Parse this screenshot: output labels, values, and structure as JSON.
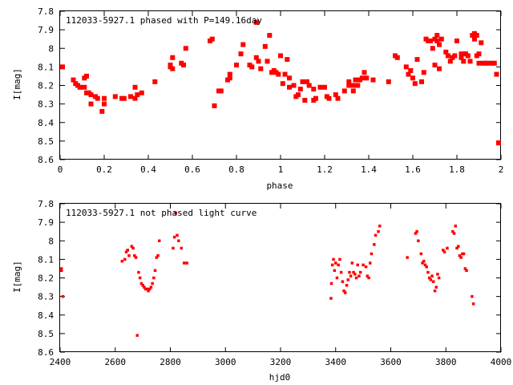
{
  "chart_data": [
    {
      "type": "scatter",
      "title": "112033-5927.1 phased with P=149.16day",
      "xlabel": "phase",
      "ylabel": "I[mag]",
      "xlim": [
        0,
        2
      ],
      "ylim": [
        7.8,
        8.6
      ],
      "y_inverted": true,
      "xticks": [
        "0",
        "0.2",
        "0.4",
        "0.6",
        "0.8",
        "1",
        "1.2",
        "1.4",
        "1.6",
        "1.8",
        "2"
      ],
      "xtick_values": [
        0,
        0.2,
        0.4,
        0.6,
        0.8,
        1.0,
        1.2,
        1.4,
        1.6,
        1.8,
        2.0
      ],
      "yticks": [
        "7.8",
        "7.9",
        "8",
        "8.1",
        "8.2",
        "8.3",
        "8.4",
        "8.5",
        "8.6"
      ],
      "ytick_values": [
        7.8,
        7.9,
        8.0,
        8.1,
        8.2,
        8.3,
        8.4,
        8.5,
        8.6
      ],
      "grid": false,
      "marker_color": "#ff0000",
      "marker": "filled-square",
      "points": [
        [
          0.0,
          8.1
        ],
        [
          0.06,
          8.17
        ],
        [
          0.07,
          8.19
        ],
        [
          0.08,
          8.2
        ],
        [
          0.09,
          8.21
        ],
        [
          0.11,
          8.21
        ],
        [
          0.11,
          8.16
        ],
        [
          0.12,
          8.15
        ],
        [
          0.12,
          8.24
        ],
        [
          0.13,
          8.24
        ],
        [
          0.14,
          8.25
        ],
        [
          0.14,
          8.3
        ],
        [
          0.16,
          8.26
        ],
        [
          0.17,
          8.27
        ],
        [
          0.19,
          8.34
        ],
        [
          0.2,
          8.27
        ],
        [
          0.2,
          8.3
        ],
        [
          0.25,
          8.26
        ],
        [
          0.28,
          8.27
        ],
        [
          0.29,
          8.27
        ],
        [
          0.32,
          8.26
        ],
        [
          0.34,
          8.27
        ],
        [
          0.34,
          8.21
        ],
        [
          0.35,
          8.25
        ],
        [
          0.37,
          8.24
        ],
        [
          0.43,
          8.18
        ],
        [
          0.5,
          8.1
        ],
        [
          0.5,
          8.09
        ],
        [
          0.51,
          8.05
        ],
        [
          0.51,
          8.11
        ],
        [
          0.55,
          8.08
        ],
        [
          0.56,
          8.09
        ],
        [
          0.57,
          8.0
        ],
        [
          0.68,
          7.96
        ],
        [
          0.69,
          7.95
        ],
        [
          0.7,
          8.31
        ],
        [
          0.72,
          8.23
        ],
        [
          0.73,
          8.23
        ],
        [
          0.76,
          8.17
        ],
        [
          0.77,
          8.14
        ],
        [
          0.77,
          8.16
        ],
        [
          0.8,
          8.09
        ],
        [
          0.82,
          8.03
        ],
        [
          0.83,
          7.98
        ],
        [
          0.86,
          8.09
        ],
        [
          0.87,
          8.1
        ],
        [
          0.89,
          8.05
        ],
        [
          0.89,
          7.86
        ],
        [
          0.9,
          8.07
        ],
        [
          0.91,
          8.11
        ],
        [
          0.93,
          7.99
        ],
        [
          0.94,
          8.07
        ],
        [
          0.95,
          7.93
        ],
        [
          0.96,
          8.13
        ],
        [
          0.97,
          8.12
        ],
        [
          0.98,
          8.13
        ],
        [
          0.99,
          8.14
        ],
        [
          1.0,
          8.04
        ],
        [
          1.01,
          8.19
        ],
        [
          1.02,
          8.14
        ],
        [
          1.03,
          8.06
        ],
        [
          1.04,
          8.16
        ],
        [
          1.04,
          8.21
        ],
        [
          1.06,
          8.2
        ],
        [
          1.07,
          8.26
        ],
        [
          1.08,
          8.25
        ],
        [
          1.09,
          8.22
        ],
        [
          1.1,
          8.18
        ],
        [
          1.11,
          8.28
        ],
        [
          1.12,
          8.18
        ],
        [
          1.13,
          8.2
        ],
        [
          1.15,
          8.28
        ],
        [
          1.15,
          8.22
        ],
        [
          1.16,
          8.27
        ],
        [
          1.18,
          8.21
        ],
        [
          1.2,
          8.21
        ],
        [
          1.21,
          8.26
        ],
        [
          1.22,
          8.27
        ],
        [
          1.25,
          8.25
        ],
        [
          1.26,
          8.27
        ],
        [
          1.29,
          8.23
        ],
        [
          1.31,
          8.2
        ],
        [
          1.31,
          8.18
        ],
        [
          1.32,
          8.2
        ],
        [
          1.33,
          8.23
        ],
        [
          1.34,
          8.17
        ],
        [
          1.34,
          8.2
        ],
        [
          1.35,
          8.2
        ],
        [
          1.36,
          8.17
        ],
        [
          1.37,
          8.16
        ],
        [
          1.38,
          8.13
        ],
        [
          1.39,
          8.16
        ],
        [
          1.42,
          8.17
        ],
        [
          1.49,
          8.18
        ],
        [
          1.52,
          8.04
        ],
        [
          1.53,
          8.05
        ],
        [
          1.57,
          8.1
        ],
        [
          1.58,
          8.14
        ],
        [
          1.59,
          8.12
        ],
        [
          1.6,
          8.16
        ],
        [
          1.61,
          8.19
        ],
        [
          1.62,
          8.06
        ],
        [
          1.64,
          8.18
        ],
        [
          1.65,
          8.13
        ],
        [
          1.66,
          7.95
        ],
        [
          1.67,
          7.96
        ],
        [
          1.68,
          7.96
        ],
        [
          1.69,
          8.0
        ],
        [
          1.7,
          8.09
        ],
        [
          1.7,
          7.95
        ],
        [
          1.71,
          7.93
        ],
        [
          1.71,
          7.96
        ],
        [
          1.72,
          7.98
        ],
        [
          1.72,
          8.11
        ],
        [
          1.73,
          7.95
        ],
        [
          1.75,
          8.02
        ],
        [
          1.76,
          8.04
        ],
        [
          1.77,
          8.07
        ],
        [
          1.78,
          8.05
        ],
        [
          1.79,
          8.04
        ],
        [
          1.8,
          7.96
        ],
        [
          1.82,
          8.05
        ],
        [
          1.82,
          8.03
        ],
        [
          1.83,
          8.07
        ],
        [
          1.84,
          8.03
        ],
        [
          1.84,
          8.03
        ],
        [
          1.85,
          8.04
        ],
        [
          1.86,
          8.07
        ],
        [
          1.87,
          7.93
        ],
        [
          1.88,
          7.95
        ],
        [
          1.88,
          7.92
        ],
        [
          1.89,
          8.04
        ],
        [
          1.89,
          7.93
        ],
        [
          1.9,
          8.08
        ],
        [
          1.9,
          8.03
        ],
        [
          1.91,
          7.97
        ],
        [
          1.92,
          8.08
        ],
        [
          1.93,
          8.08
        ],
        [
          1.94,
          8.08
        ],
        [
          1.96,
          8.08
        ],
        [
          1.97,
          8.08
        ],
        [
          1.98,
          8.14
        ],
        [
          2.0,
          8.51
        ]
      ]
    },
    {
      "type": "scatter",
      "title": "112033-5927.1 not phased light curve",
      "xlabel": "hjd0",
      "ylabel": "I[mag]",
      "xlim": [
        2400,
        4000
      ],
      "ylim": [
        7.8,
        8.6
      ],
      "y_inverted": true,
      "xticks": [
        "2400",
        "2600",
        "2800",
        "3000",
        "3200",
        "3400",
        "3600",
        "3800",
        "4000"
      ],
      "xtick_values": [
        2400,
        2600,
        2800,
        3000,
        3200,
        3400,
        3600,
        3800,
        4000
      ],
      "yticks": [
        "7.8",
        "7.9",
        "8",
        "8.1",
        "8.2",
        "8.3",
        "8.4",
        "8.5",
        "8.6"
      ],
      "ytick_values": [
        7.8,
        7.9,
        8.0,
        8.1,
        8.2,
        8.3,
        8.4,
        8.5,
        8.6
      ],
      "grid": false,
      "marker_color": "#ff0000",
      "marker": "small-dot",
      "points": [
        [
          2400,
          8.15
        ],
        [
          2400,
          8.16
        ],
        [
          2410,
          8.3
        ],
        [
          2625,
          8.11
        ],
        [
          2635,
          8.1
        ],
        [
          2640,
          8.06
        ],
        [
          2645,
          8.05
        ],
        [
          2650,
          8.08
        ],
        [
          2660,
          8.03
        ],
        [
          2665,
          8.04
        ],
        [
          2670,
          8.08
        ],
        [
          2675,
          8.09
        ],
        [
          2680,
          8.51
        ],
        [
          2685,
          8.17
        ],
        [
          2690,
          8.2
        ],
        [
          2695,
          8.23
        ],
        [
          2700,
          8.24
        ],
        [
          2705,
          8.25
        ],
        [
          2710,
          8.26
        ],
        [
          2715,
          8.26
        ],
        [
          2720,
          8.27
        ],
        [
          2725,
          8.26
        ],
        [
          2730,
          8.25
        ],
        [
          2735,
          8.23
        ],
        [
          2740,
          8.2
        ],
        [
          2745,
          8.16
        ],
        [
          2750,
          8.09
        ],
        [
          2755,
          8.08
        ],
        [
          2760,
          8.0
        ],
        [
          2810,
          8.04
        ],
        [
          2815,
          7.98
        ],
        [
          2820,
          7.85
        ],
        [
          2825,
          7.97
        ],
        [
          2830,
          8.0
        ],
        [
          2840,
          8.04
        ],
        [
          2850,
          8.12
        ],
        [
          2860,
          8.12
        ],
        [
          3383,
          8.31
        ],
        [
          3385,
          8.23
        ],
        [
          3388,
          8.13
        ],
        [
          3392,
          8.1
        ],
        [
          3396,
          8.16
        ],
        [
          3400,
          8.12
        ],
        [
          3405,
          8.2
        ],
        [
          3410,
          8.13
        ],
        [
          3415,
          8.1
        ],
        [
          3420,
          8.17
        ],
        [
          3425,
          8.22
        ],
        [
          3430,
          8.27
        ],
        [
          3435,
          8.28
        ],
        [
          3440,
          8.24
        ],
        [
          3445,
          8.21
        ],
        [
          3450,
          8.17
        ],
        [
          3455,
          8.19
        ],
        [
          3460,
          8.12
        ],
        [
          3465,
          8.17
        ],
        [
          3470,
          8.18
        ],
        [
          3475,
          8.2
        ],
        [
          3480,
          8.13
        ],
        [
          3485,
          8.19
        ],
        [
          3490,
          8.17
        ],
        [
          3500,
          8.13
        ],
        [
          3510,
          8.14
        ],
        [
          3515,
          8.19
        ],
        [
          3520,
          8.2
        ],
        [
          3525,
          8.12
        ],
        [
          3530,
          8.07
        ],
        [
          3540,
          8.02
        ],
        [
          3545,
          7.97
        ],
        [
          3555,
          7.95
        ],
        [
          3560,
          7.92
        ],
        [
          3660,
          8.09
        ],
        [
          3690,
          7.96
        ],
        [
          3695,
          7.95
        ],
        [
          3700,
          8.0
        ],
        [
          3710,
          8.07
        ],
        [
          3715,
          8.12
        ],
        [
          3720,
          8.11
        ],
        [
          3725,
          8.13
        ],
        [
          3730,
          8.14
        ],
        [
          3735,
          8.17
        ],
        [
          3740,
          8.2
        ],
        [
          3745,
          8.21
        ],
        [
          3750,
          8.19
        ],
        [
          3755,
          8.22
        ],
        [
          3760,
          8.27
        ],
        [
          3765,
          8.25
        ],
        [
          3770,
          8.18
        ],
        [
          3775,
          8.2
        ],
        [
          3790,
          8.05
        ],
        [
          3795,
          8.06
        ],
        [
          3805,
          8.04
        ],
        [
          3825,
          7.95
        ],
        [
          3830,
          7.96
        ],
        [
          3835,
          7.92
        ],
        [
          3840,
          8.04
        ],
        [
          3845,
          8.03
        ],
        [
          3850,
          8.08
        ],
        [
          3855,
          8.09
        ],
        [
          3860,
          8.07
        ],
        [
          3865,
          8.07
        ],
        [
          3870,
          8.15
        ],
        [
          3875,
          8.16
        ],
        [
          3895,
          8.3
        ],
        [
          3900,
          8.34
        ]
      ]
    }
  ]
}
